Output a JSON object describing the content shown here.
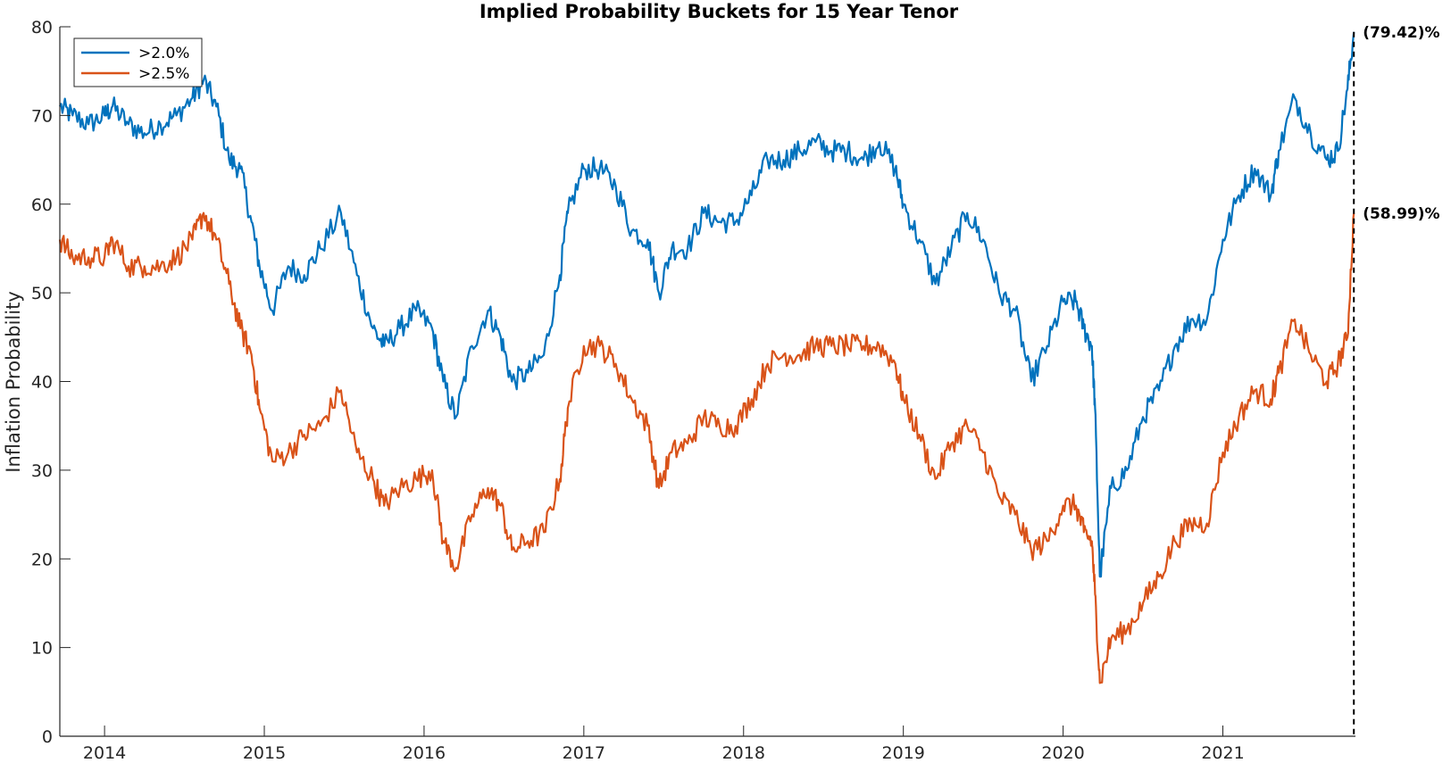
{
  "chart_data": {
    "type": "line",
    "title": "Implied Probability Buckets for 15 Year Tenor",
    "xlabel": "",
    "ylabel": "Inflation Probability",
    "xlim": [
      2013.72,
      2021.83
    ],
    "ylim": [
      0,
      80
    ],
    "x_ticks": [
      2014,
      2015,
      2016,
      2017,
      2018,
      2019,
      2020,
      2021
    ],
    "y_ticks": [
      0,
      10,
      20,
      30,
      40,
      50,
      60,
      70,
      80
    ],
    "grid": false,
    "legend_position": "top-left",
    "end_marker_x": 2021.82,
    "series": [
      {
        "name": ">2.0%",
        "color": "#0072BD",
        "end_label": "(79.42)%",
        "x": [
          2013.72,
          2013.8,
          2013.9,
          2014.0,
          2014.05,
          2014.15,
          2014.25,
          2014.35,
          2014.45,
          2014.55,
          2014.62,
          2014.7,
          2014.78,
          2014.85,
          2014.92,
          2014.97,
          2015.05,
          2015.15,
          2015.25,
          2015.35,
          2015.48,
          2015.58,
          2015.68,
          2015.75,
          2015.85,
          2015.95,
          2016.05,
          2016.12,
          2016.2,
          2016.3,
          2016.4,
          2016.48,
          2016.55,
          2016.65,
          2016.75,
          2016.85,
          2016.9,
          2017.0,
          2017.1,
          2017.2,
          2017.3,
          2017.4,
          2017.47,
          2017.55,
          2017.65,
          2017.75,
          2017.85,
          2017.95,
          2018.05,
          2018.15,
          2018.25,
          2018.35,
          2018.45,
          2018.55,
          2018.65,
          2018.75,
          2018.85,
          2018.95,
          2019.0,
          2019.1,
          2019.2,
          2019.3,
          2019.4,
          2019.5,
          2019.6,
          2019.7,
          2019.8,
          2019.9,
          2020.0,
          2020.08,
          2020.13,
          2020.18,
          2020.2,
          2020.23,
          2020.3,
          2020.4,
          2020.5,
          2020.6,
          2020.7,
          2020.8,
          2020.9,
          2021.0,
          2021.1,
          2021.2,
          2021.3,
          2021.35,
          2021.45,
          2021.55,
          2021.65,
          2021.72,
          2021.78,
          2021.82
        ],
        "y": [
          71,
          70,
          69,
          70,
          71,
          69,
          68,
          69,
          70,
          72,
          74,
          71,
          65,
          64,
          58,
          53,
          48,
          53,
          52,
          55,
          59,
          52,
          46,
          44,
          46,
          48,
          46,
          40,
          36,
          44,
          48,
          45,
          40,
          41,
          43,
          52,
          59,
          64,
          64,
          62,
          57,
          56,
          50,
          55,
          55,
          59,
          58,
          58,
          61,
          65,
          65,
          66,
          67,
          66,
          66,
          65,
          67,
          64,
          60,
          56,
          51,
          55,
          59,
          56,
          50,
          48,
          40,
          44,
          49,
          49,
          46,
          44,
          37,
          18,
          28,
          30,
          36,
          39,
          44,
          47,
          47,
          56,
          61,
          64,
          61,
          66,
          72,
          68,
          65,
          66,
          73,
          79.42
        ]
      },
      {
        "name": ">2.5%",
        "color": "#D95319",
        "end_label": "(58.99)%",
        "x": [
          2013.72,
          2013.8,
          2013.9,
          2014.0,
          2014.05,
          2014.15,
          2014.25,
          2014.35,
          2014.45,
          2014.55,
          2014.62,
          2014.7,
          2014.78,
          2014.85,
          2014.92,
          2014.97,
          2015.05,
          2015.15,
          2015.25,
          2015.35,
          2015.48,
          2015.58,
          2015.68,
          2015.75,
          2015.85,
          2015.95,
          2016.05,
          2016.12,
          2016.2,
          2016.3,
          2016.4,
          2016.48,
          2016.55,
          2016.65,
          2016.75,
          2016.85,
          2016.9,
          2017.0,
          2017.1,
          2017.2,
          2017.3,
          2017.4,
          2017.47,
          2017.55,
          2017.65,
          2017.75,
          2017.85,
          2017.95,
          2018.05,
          2018.15,
          2018.25,
          2018.35,
          2018.45,
          2018.55,
          2018.65,
          2018.75,
          2018.85,
          2018.95,
          2019.0,
          2019.1,
          2019.2,
          2019.3,
          2019.4,
          2019.5,
          2019.6,
          2019.7,
          2019.8,
          2019.9,
          2020.0,
          2020.08,
          2020.13,
          2020.18,
          2020.2,
          2020.23,
          2020.3,
          2020.4,
          2020.5,
          2020.6,
          2020.7,
          2020.8,
          2020.9,
          2021.0,
          2021.1,
          2021.2,
          2021.3,
          2021.35,
          2021.45,
          2021.55,
          2021.65,
          2021.72,
          2021.78,
          2021.82
        ],
        "y": [
          56,
          54,
          54,
          54,
          56,
          53,
          53,
          53,
          54,
          56,
          59,
          56,
          51,
          46,
          43,
          37,
          31,
          32,
          34,
          35,
          39,
          32,
          29,
          26,
          28,
          29,
          30,
          22,
          19,
          25,
          28,
          26,
          21,
          22,
          23,
          29,
          37,
          44,
          44,
          42,
          38,
          35,
          28,
          32,
          33,
          36,
          35,
          35,
          38,
          42,
          43,
          43,
          44,
          44,
          44,
          44,
          44,
          42,
          38,
          34,
          29,
          33,
          35,
          32,
          27,
          25,
          21,
          22,
          26,
          26,
          23,
          22,
          16,
          6,
          11,
          12,
          15,
          18,
          22,
          24,
          24,
          32,
          36,
          39,
          38,
          41,
          47,
          43,
          40,
          42,
          45,
          58.99
        ]
      }
    ]
  }
}
